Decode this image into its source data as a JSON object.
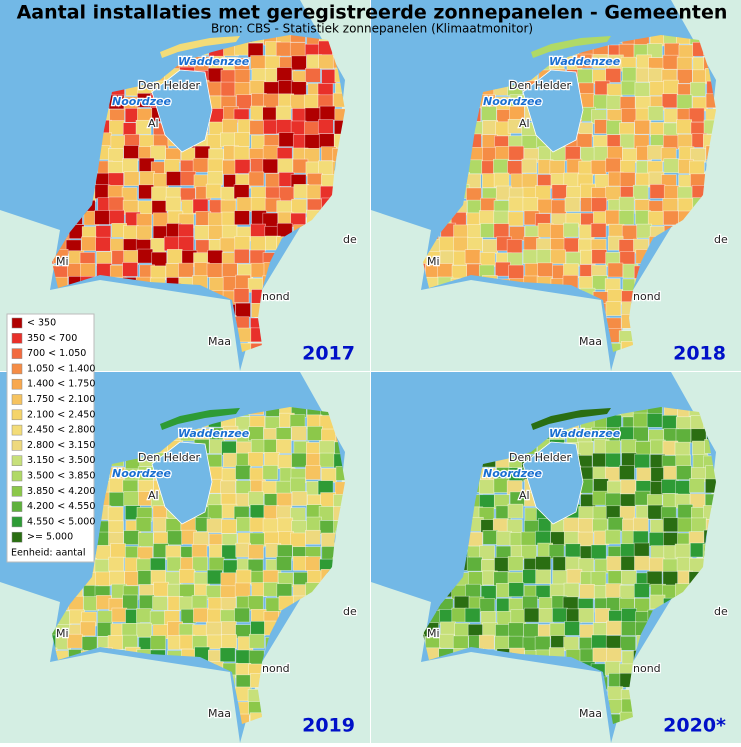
{
  "header": {
    "title": "Aantal installaties met geregistreerde zonnepanelen - Gemeenten",
    "source": "Bron: CBS - Statistiek zonnepanelen (Klimaatmonitor)"
  },
  "legend": {
    "items": [
      {
        "label": "< 350",
        "color": "#b00000"
      },
      {
        "label": "350 < 700",
        "color": "#e8302a"
      },
      {
        "label": "700 < 1.050",
        "color": "#f26a3f"
      },
      {
        "label": "1.050 < 1.400",
        "color": "#f58c45"
      },
      {
        "label": "1.400 < 1.750",
        "color": "#f8a84e"
      },
      {
        "label": "1.750 < 2.100",
        "color": "#f6c35f"
      },
      {
        "label": "2.100 < 2.450",
        "color": "#f5d46a"
      },
      {
        "label": "2.450 < 2.800",
        "color": "#f3dc78"
      },
      {
        "label": "2.800 < 3.150",
        "color": "#eed97e"
      },
      {
        "label": "3.150 < 3.500",
        "color": "#c7e07a"
      },
      {
        "label": "3.500 < 3.850",
        "color": "#b0d966"
      },
      {
        "label": "3.850 < 4.200",
        "color": "#8cc84a"
      },
      {
        "label": "4.200 < 4.550",
        "color": "#5fb13c"
      },
      {
        "label": "4.550 < 5.000",
        "color": "#2e9b35"
      },
      {
        "label": ">= 5.000",
        "color": "#2a6e12"
      }
    ],
    "unit": "Eenheid: aantal"
  },
  "panels": [
    {
      "year": "2017"
    },
    {
      "year": "2018"
    },
    {
      "year": "2019"
    },
    {
      "year": "2020*"
    }
  ],
  "place_labels": [
    "Waddenzee",
    "Den Helder",
    "Noordzee",
    "Al",
    "Mi",
    "Maa",
    "de",
    "nond"
  ]
}
